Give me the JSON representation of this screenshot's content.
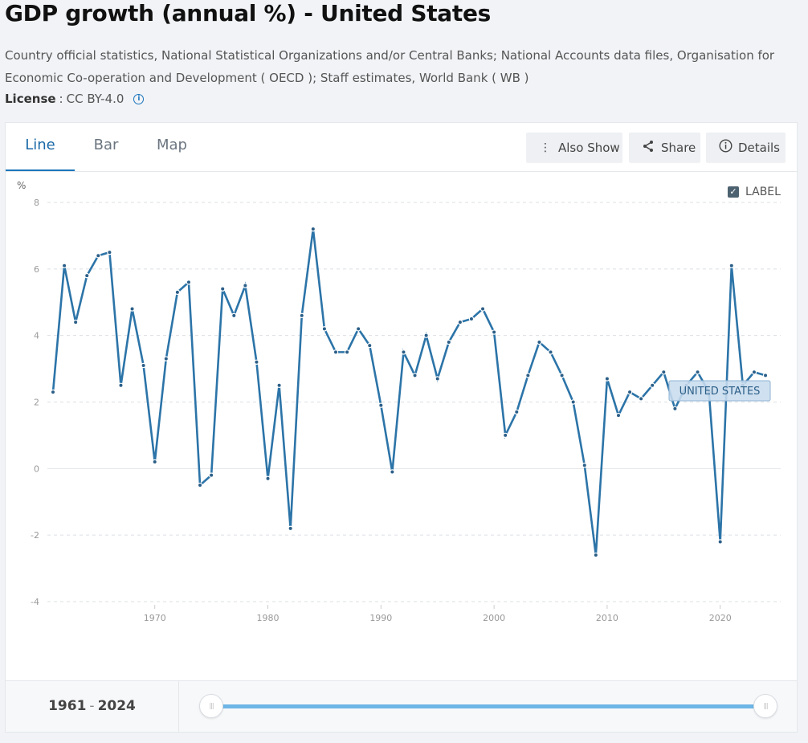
{
  "header": {
    "title": "GDP growth (annual %) - United States",
    "source": "Country official statistics, National Statistical Organizations and/or Central Banks; National Accounts data files, Organisation for Economic Co-operation and Development ( OECD ); Staff estimates, World Bank ( WB )",
    "license_label": "License",
    "license_sep": " : ",
    "license_value": "CC BY-4.0",
    "info_icon": "i"
  },
  "tabs": [
    {
      "label": "Line",
      "active": true
    },
    {
      "label": "Bar",
      "active": false
    },
    {
      "label": "Map",
      "active": false
    }
  ],
  "toolbar": {
    "also_show": {
      "label": "Also Show",
      "icon": "vertical-dots-icon",
      "glyph": "⋮"
    },
    "share": {
      "label": "Share",
      "icon": "share-icon",
      "glyph": "<"
    },
    "details": {
      "label": "Details",
      "icon": "info-circle-icon",
      "glyph": "i"
    }
  },
  "label_toggle": {
    "label": "LABEL",
    "checked": true,
    "glyph": "✓"
  },
  "chart_data": {
    "type": "line",
    "title": "GDP growth (annual %) - United States",
    "xlabel": "",
    "ylabel": "%",
    "ylim": [
      -4,
      8
    ],
    "xlim": [
      1961,
      2024
    ],
    "yticks": [
      8,
      6,
      4,
      2,
      0,
      -2,
      -4
    ],
    "ytick_labels": [
      "8",
      "6",
      "4",
      "2",
      "0",
      "-2",
      "-4"
    ],
    "xticks": [
      1970,
      1980,
      1990,
      2000,
      2010,
      2020
    ],
    "xtick_labels": [
      "1970",
      "1980",
      "1990",
      "2000",
      "2010",
      "2020"
    ],
    "grid": true,
    "series": [
      {
        "name": "UNITED STATES",
        "color": "#2c74a8",
        "x": [
          1961,
          1962,
          1963,
          1964,
          1965,
          1966,
          1967,
          1968,
          1969,
          1970,
          1971,
          1972,
          1973,
          1974,
          1975,
          1976,
          1977,
          1978,
          1979,
          1980,
          1981,
          1982,
          1983,
          1984,
          1985,
          1986,
          1987,
          1988,
          1989,
          1990,
          1991,
          1992,
          1993,
          1994,
          1995,
          1996,
          1997,
          1998,
          1999,
          2000,
          2001,
          2002,
          2003,
          2004,
          2005,
          2006,
          2007,
          2008,
          2009,
          2010,
          2011,
          2012,
          2013,
          2014,
          2015,
          2016,
          2017,
          2018,
          2019,
          2020,
          2021,
          2022,
          2023,
          2024
        ],
        "values": [
          2.3,
          6.1,
          4.4,
          5.8,
          6.4,
          6.5,
          2.5,
          4.8,
          3.1,
          0.2,
          3.3,
          5.3,
          5.6,
          -0.5,
          -0.2,
          5.4,
          4.6,
          5.5,
          3.2,
          -0.3,
          2.5,
          -1.8,
          4.6,
          7.2,
          4.2,
          3.5,
          3.5,
          4.2,
          3.7,
          1.9,
          -0.1,
          3.5,
          2.8,
          4.0,
          2.7,
          3.8,
          4.4,
          4.5,
          4.8,
          4.1,
          1.0,
          1.7,
          2.8,
          3.8,
          3.5,
          2.8,
          2.0,
          0.1,
          -2.6,
          2.7,
          1.6,
          2.3,
          2.1,
          2.5,
          2.9,
          1.8,
          2.5,
          2.9,
          2.3,
          -2.2,
          6.1,
          2.5,
          2.9,
          2.8
        ]
      }
    ],
    "series_label": "UNITED STATES"
  },
  "range": {
    "start": "1961",
    "separator": "-",
    "end": "2024",
    "start_fraction": 0.0,
    "end_fraction": 1.0
  }
}
